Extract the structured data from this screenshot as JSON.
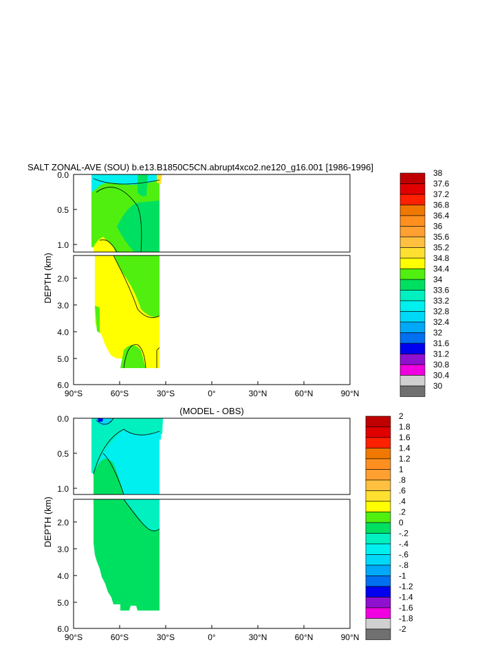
{
  "chart_data": [
    {
      "type": "contour",
      "title": "SALT ZONAL-AVE (SOU) b.e13.B1850C5CN.abrupt4xco2.ne120_g16.001 [1986-1996]",
      "xlabel": "",
      "ylabel": "DEPTH (km)",
      "x_ticks": [
        "90°S",
        "60°S",
        "30°S",
        "0°",
        "30°N",
        "60°N",
        "90°N"
      ],
      "x_values": [
        -90,
        -60,
        -30,
        0,
        30,
        60,
        90
      ],
      "y_ticks_upper": [
        "0.0",
        "0.5",
        "1.0"
      ],
      "y_ticks_lower": [
        "2.0",
        "3.0",
        "4.0",
        "5.0",
        "6.0"
      ],
      "ylim": [
        0,
        6
      ],
      "data_extent_lat": [
        -78,
        -34
      ],
      "colorbar": {
        "labels": [
          "38",
          "37.6",
          "37.2",
          "36.8",
          "36.4",
          "36",
          "35.6",
          "35.2",
          "34.8",
          "34.4",
          "34",
          "33.6",
          "33.2",
          "32.8",
          "32.4",
          "32",
          "31.6",
          "31.2",
          "30.8",
          "30.4",
          "30"
        ],
        "colors": [
          "#c00000",
          "#e00000",
          "#ff2000",
          "#f07800",
          "#ff9020",
          "#ffa030",
          "#ffc040",
          "#ffe030",
          "#ffff00",
          "#50ef10",
          "#00e060",
          "#00f0c0",
          "#00f0f0",
          "#00d8f8",
          "#00a8f8",
          "#0070f0",
          "#0000f0",
          "#9010d0",
          "#f000e0",
          "#d0d0d0",
          "#707070"
        ]
      },
      "regions": [
        {
          "name": "surface-cyan",
          "color": "#00f0f0"
        },
        {
          "name": "surface-yellow",
          "color": "#ffe030"
        },
        {
          "name": "upper-green",
          "color": "#50ef10"
        },
        {
          "name": "intermediate",
          "color": "#00e060"
        },
        {
          "name": "deep",
          "color": "#ffff00"
        }
      ]
    },
    {
      "type": "contour",
      "title": "(MODEL - OBS)",
      "xlabel": "",
      "ylabel": "DEPTH (km)",
      "x_ticks": [
        "90°S",
        "60°S",
        "30°S",
        "0°",
        "30°N",
        "60°N",
        "90°N"
      ],
      "x_values": [
        -90,
        -60,
        -30,
        0,
        30,
        60,
        90
      ],
      "y_ticks_upper": [
        "0.0",
        "0.5",
        "1.0"
      ],
      "y_ticks_lower": [
        "2.0",
        "3.0",
        "4.0",
        "5.0",
        "6.0"
      ],
      "ylim": [
        0,
        6
      ],
      "data_extent_lat": [
        -78,
        -34
      ],
      "colorbar": {
        "labels": [
          "2",
          "1.8",
          "1.6",
          "1.4",
          "1.2",
          "1",
          ".8",
          ".6",
          ".4",
          ".2",
          "0",
          "-.2",
          "-.4",
          "-.6",
          "-.8",
          "-1",
          "-1.2",
          "-1.4",
          "-1.6",
          "-1.8",
          "-2"
        ],
        "colors": [
          "#c00000",
          "#e00000",
          "#ff2000",
          "#f07800",
          "#ff9020",
          "#ffa030",
          "#ffc040",
          "#ffe030",
          "#ffff00",
          "#50ef10",
          "#00e060",
          "#00f0c0",
          "#00f0f0",
          "#00d8f8",
          "#00a8f8",
          "#0070f0",
          "#0000f0",
          "#9010d0",
          "#f000e0",
          "#d0d0d0",
          "#707070"
        ]
      },
      "regions": [
        {
          "name": "negative-small",
          "color": "#00f0c0"
        },
        {
          "name": "negative-mid",
          "color": "#00f0f0"
        },
        {
          "name": "near-zero",
          "color": "#00e060"
        },
        {
          "name": "surface-min",
          "color": "#0000f0"
        }
      ]
    }
  ]
}
